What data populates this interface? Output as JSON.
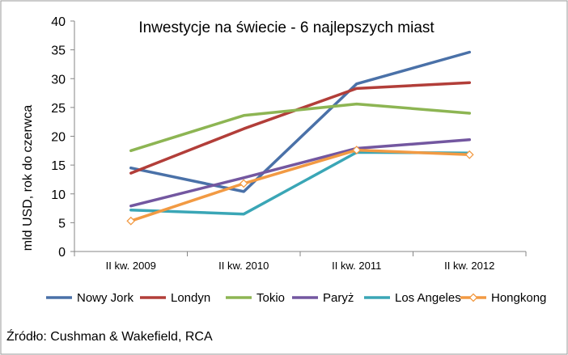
{
  "chart_data": {
    "type": "line",
    "title": "Inwestycje na świecie - 6 najlepszych miast",
    "ylabel": "mld USD, rok do czerwca",
    "xlabel": "",
    "categories": [
      "II kw. 2009",
      "II kw. 2010",
      "II kw. 2011",
      "II kw. 2012"
    ],
    "ylim": [
      0,
      40
    ],
    "yticks": [
      "0",
      "5",
      "10",
      "15",
      "20",
      "25",
      "30",
      "35",
      "40"
    ],
    "grid": false,
    "legend_position": "bottom",
    "series": [
      {
        "name": "Nowy Jork",
        "color": "#4a71a8",
        "marker": "none",
        "values": [
          14.5,
          10.4,
          29.1,
          34.6
        ]
      },
      {
        "name": "Londyn",
        "color": "#b23e39",
        "marker": "none",
        "values": [
          13.6,
          21.3,
          28.3,
          29.3
        ]
      },
      {
        "name": "Tokio",
        "color": "#8db553",
        "marker": "none",
        "values": [
          17.5,
          23.6,
          25.6,
          24.0
        ]
      },
      {
        "name": "Paryż",
        "color": "#7357a0",
        "marker": "none",
        "values": [
          7.9,
          12.8,
          17.9,
          19.4
        ]
      },
      {
        "name": "Los Angeles",
        "color": "#3aa6b6",
        "marker": "none",
        "values": [
          7.2,
          6.5,
          17.2,
          17.1
        ]
      },
      {
        "name": "Hongkong",
        "color": "#f29a43",
        "marker": "diamond",
        "values": [
          5.3,
          11.8,
          17.6,
          16.8
        ]
      }
    ]
  },
  "source_text": "Źródło: Cushman & Wakefield, RCA"
}
